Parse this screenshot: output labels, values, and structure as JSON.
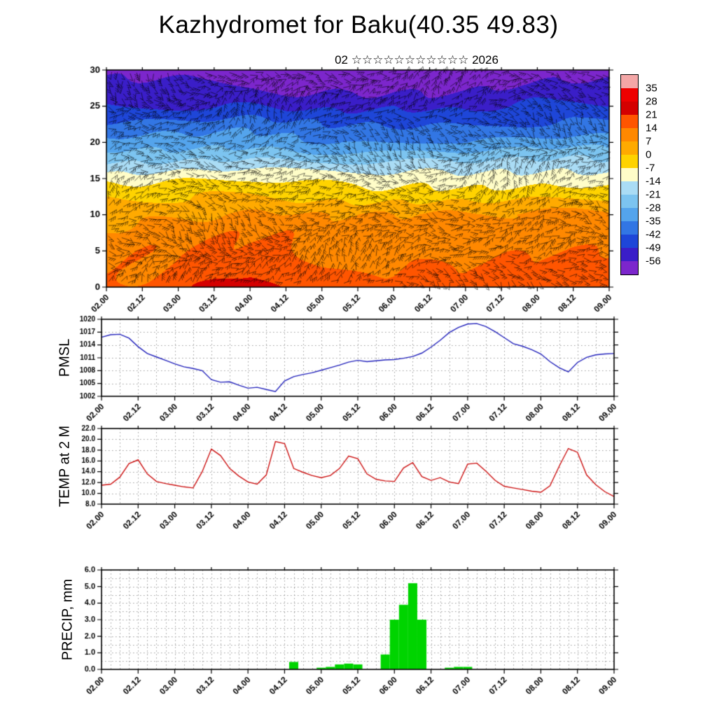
{
  "title": "Kazhydromet for Baku(40.35 49.83)",
  "subtitle": "02 ☆☆☆☆☆☆☆☆☆☆☆ 2026",
  "axis_labels": {
    "pmsl": "PMSL",
    "temp": "TEMP at 2 M",
    "precip": "PRECIP, mm"
  },
  "x_axis": {
    "tick_days": [
      2,
      2.5,
      3,
      3.5,
      4,
      4.5,
      5,
      5.5,
      6,
      6.5,
      7,
      7.5,
      8,
      8.5,
      9
    ],
    "tick_labels": [
      "02.00",
      "02.12",
      "03.00",
      "03.12",
      "04.00",
      "04.12",
      "05.00",
      "05.12",
      "06.00",
      "06.12",
      "07.00",
      "07.12",
      "08.00",
      "08.12",
      "09.00"
    ]
  },
  "colorbar": {
    "labels": [
      "35",
      "28",
      "21",
      "14",
      "7",
      "0",
      "-7",
      "-14",
      "-21",
      "-28",
      "-35",
      "-42",
      "-49",
      "-56"
    ],
    "colors": [
      "#f4a7a7",
      "#ee0000",
      "#d40000",
      "#ff5500",
      "#ff8800",
      "#ffaa00",
      "#ffd300",
      "#fffdc8",
      "#aadcf5",
      "#7cc4f0",
      "#54a4ec",
      "#3276e4",
      "#1e46d8",
      "#3a1ec8",
      "#7c26cc"
    ]
  },
  "chart_data": [
    {
      "type": "heatmap",
      "name": "temperature-wind-cross-section",
      "overlay": "wind-barbs",
      "x_unit": "day.hour",
      "y_ticks": [
        0,
        5,
        10,
        15,
        20,
        25,
        30
      ],
      "y_tick_labels": [
        "0",
        "5",
        "10",
        "15",
        "20",
        "25",
        "30"
      ],
      "levels": [
        0,
        5,
        10,
        15,
        20,
        25,
        30
      ],
      "times_days": [
        2,
        2.5,
        3,
        3.5,
        4,
        4.5,
        5,
        5.5,
        6,
        6.5,
        7,
        7.5,
        8,
        8.5,
        9
      ],
      "colorscale_thresholds": [
        35,
        28,
        21,
        14,
        7,
        0,
        -7,
        -14,
        -21,
        -28,
        -35,
        -42,
        -49,
        -56
      ],
      "temps_c": [
        [
          15,
          11,
          6,
          -10,
          -33,
          -49,
          -59
        ],
        [
          16,
          12,
          6,
          -10,
          -33,
          -49,
          -59
        ],
        [
          17,
          13,
          7,
          -9,
          -32,
          -49,
          -60
        ],
        [
          23,
          15,
          8,
          -8,
          -31,
          -48,
          -60
        ],
        [
          25,
          16,
          9,
          -8,
          -30,
          -48,
          -61
        ],
        [
          21,
          15,
          9,
          -9,
          -32,
          -50,
          -62
        ],
        [
          16,
          12,
          7,
          -10,
          -34,
          -51,
          -62
        ],
        [
          16,
          12,
          7,
          -11,
          -35,
          -52,
          -62
        ],
        [
          15,
          12,
          7,
          -11,
          -34,
          -51,
          -61
        ],
        [
          16,
          12,
          7,
          -10,
          -33,
          -52,
          -63
        ],
        [
          16,
          12,
          7,
          -11,
          -34,
          -52,
          -62
        ],
        [
          17,
          13,
          7,
          -10,
          -33,
          -50,
          -60
        ],
        [
          18,
          13,
          7,
          -10,
          -32,
          -49,
          -59
        ],
        [
          23,
          15,
          8,
          -9,
          -31,
          -48,
          -58
        ],
        [
          19,
          13,
          7,
          -10,
          -32,
          -48,
          -58
        ]
      ]
    },
    {
      "type": "line",
      "name": "PMSL",
      "units": "hPa",
      "color": "#2222bb",
      "x_start_day": 2,
      "x_step_hours": 3,
      "ylim": [
        1002,
        1020
      ],
      "yticks": [
        1002,
        1005,
        1008,
        1011,
        1014,
        1017,
        1020
      ],
      "ytick_labels": [
        "1002",
        "1005",
        "1008",
        "1011",
        "1014",
        "1017",
        "1020"
      ],
      "values": [
        1015.8,
        1016.4,
        1016.5,
        1015.6,
        1013.6,
        1012.0,
        1011.2,
        1010.4,
        1009.6,
        1008.9,
        1008.5,
        1008.0,
        1005.9,
        1005.3,
        1005.4,
        1004.6,
        1003.9,
        1004.1,
        1003.6,
        1003.1,
        1005.6,
        1006.6,
        1007.1,
        1007.5,
        1008.1,
        1008.7,
        1009.3,
        1010.0,
        1010.4,
        1010.1,
        1010.3,
        1010.5,
        1010.6,
        1010.9,
        1011.3,
        1012.1,
        1013.5,
        1015.1,
        1016.9,
        1018.1,
        1018.9,
        1019.0,
        1018.3,
        1017.1,
        1015.7,
        1014.3,
        1013.7,
        1012.9,
        1011.9,
        1010.1,
        1008.7,
        1007.7,
        1009.9,
        1011.1,
        1011.7,
        1011.9,
        1012.0
      ]
    },
    {
      "type": "line",
      "name": "TEMP at 2 M",
      "units": "C",
      "color": "#cc1111",
      "x_start_day": 2,
      "x_step_hours": 3,
      "ylim": [
        8,
        22
      ],
      "yticks": [
        8,
        10,
        12,
        14,
        16,
        18,
        20,
        22
      ],
      "ytick_labels": [
        "8.0",
        "10.0",
        "12.0",
        "14.0",
        "16.0",
        "18.0",
        "20.0",
        "22.0"
      ],
      "values": [
        11.5,
        11.7,
        13.0,
        15.5,
        16.2,
        13.6,
        12.2,
        11.8,
        11.5,
        11.2,
        11.0,
        14.0,
        18.2,
        17.0,
        14.6,
        13.2,
        12.1,
        11.7,
        13.4,
        19.6,
        19.2,
        14.6,
        13.9,
        13.3,
        12.9,
        13.3,
        14.6,
        16.9,
        16.4,
        13.6,
        12.6,
        12.3,
        12.2,
        14.7,
        15.7,
        13.1,
        12.4,
        12.9,
        12.1,
        11.8,
        15.4,
        15.6,
        14.1,
        12.4,
        11.3,
        11.0,
        10.7,
        10.4,
        10.2,
        11.4,
        15.0,
        18.3,
        17.6,
        13.4,
        11.6,
        10.3,
        9.4
      ]
    },
    {
      "type": "bar",
      "name": "PRECIP, mm",
      "units": "mm",
      "color": "#00d400",
      "x_start_day": 2,
      "x_step_hours": 3,
      "ylim": [
        0,
        6
      ],
      "yticks": [
        0,
        1,
        2,
        3,
        4,
        5,
        6
      ],
      "ytick_labels": [
        "0.0",
        "1.0",
        "2.0",
        "3.0",
        "4.0",
        "5.0",
        "6.0"
      ],
      "values": [
        0,
        0,
        0,
        0,
        0,
        0,
        0,
        0,
        0,
        0,
        0,
        0,
        0,
        0,
        0,
        0,
        0,
        0,
        0,
        0,
        0,
        0.45,
        0,
        0,
        0.1,
        0.15,
        0.3,
        0.35,
        0.3,
        0,
        0,
        0.9,
        3.0,
        3.9,
        5.2,
        3.0,
        0,
        0,
        0.1,
        0.15,
        0.15,
        0,
        0,
        0,
        0,
        0,
        0,
        0,
        0,
        0,
        0,
        0,
        0,
        0,
        0,
        0,
        0
      ]
    }
  ]
}
